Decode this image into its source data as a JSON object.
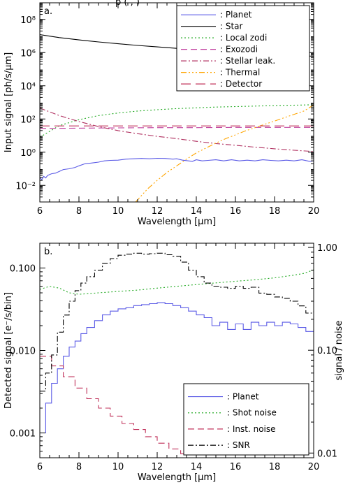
{
  "header_fragment": "p (  ,         )",
  "chart_data": [
    {
      "type": "line",
      "panel_label": "a.",
      "xlabel": "Wavelength [μm]",
      "ylabel": "Input signal [ph/s/μm]",
      "xlim": [
        6,
        20
      ],
      "ylim": [
        0.001,
        1000000000
      ],
      "yscale": "log",
      "x_ticks": [
        6,
        8,
        10,
        12,
        14,
        16,
        18,
        20
      ],
      "y_ticks": [
        {
          "value": 0.01,
          "label": "10⁻²"
        },
        {
          "value": 1,
          "label": "10⁰"
        },
        {
          "value": 100,
          "label": "10²"
        },
        {
          "value": 10000,
          "label": "10⁴"
        },
        {
          "value": 1000000,
          "label": "10⁶"
        },
        {
          "value": 100000000,
          "label": "10⁸"
        }
      ],
      "legend_position": "top-right",
      "series": [
        {
          "name": ": Planet",
          "color": "#5b5be6",
          "dash": "",
          "x": [
            6.0,
            6.1,
            6.2,
            6.3,
            6.4,
            6.6,
            6.8,
            7.0,
            7.2,
            7.5,
            7.8,
            8.0,
            8.3,
            8.6,
            9.0,
            9.3,
            9.6,
            10.0,
            10.4,
            10.8,
            11.2,
            11.6,
            12.0,
            12.4,
            12.8,
            13.0,
            13.3,
            13.6,
            13.8,
            14.0,
            14.3,
            14.6,
            15.0,
            15.4,
            15.8,
            16.2,
            16.6,
            17.0,
            17.4,
            17.8,
            18.2,
            18.6,
            19.0,
            19.4,
            19.8,
            20.0
          ],
          "y": [
            0.03,
            0.022,
            0.035,
            0.028,
            0.04,
            0.05,
            0.055,
            0.07,
            0.09,
            0.1,
            0.12,
            0.15,
            0.2,
            0.22,
            0.25,
            0.3,
            0.32,
            0.33,
            0.38,
            0.4,
            0.42,
            0.4,
            0.43,
            0.42,
            0.38,
            0.4,
            0.33,
            0.3,
            0.28,
            0.35,
            0.3,
            0.32,
            0.35,
            0.3,
            0.35,
            0.3,
            0.33,
            0.3,
            0.35,
            0.32,
            0.3,
            0.33,
            0.3,
            0.35,
            0.28,
            0.3
          ]
        },
        {
          "name": ": Star",
          "color": "#000000",
          "dash": "",
          "x": [
            6,
            7,
            8,
            9,
            10,
            11,
            12,
            13,
            14,
            15,
            16,
            17,
            18,
            19,
            20
          ],
          "y": [
            12000000,
            8000000,
            5800000,
            4400000,
            3400000,
            2700000,
            2200000,
            1800000,
            1500000,
            1250000,
            1050000,
            900000,
            780000,
            680000,
            600000
          ]
        },
        {
          "name": ": Local zodi",
          "color": "#22aa22",
          "dash": "2,3",
          "x": [
            6,
            7,
            8,
            9,
            10,
            11,
            12,
            13,
            14,
            15,
            16,
            17,
            18,
            19,
            20
          ],
          "y": [
            8,
            40,
            90,
            160,
            230,
            300,
            360,
            420,
            470,
            520,
            560,
            600,
            640,
            680,
            720
          ]
        },
        {
          "name": ": Exozodi",
          "color": "#c040a0",
          "dash": "9,5",
          "x": [
            6,
            8,
            10,
            12,
            14,
            16,
            18,
            20
          ],
          "y": [
            27,
            28,
            29,
            30,
            30,
            31,
            31,
            31
          ]
        },
        {
          "name": ": Stellar leak.",
          "color": "#b03060",
          "dash": "8,3,2,3",
          "x": [
            6,
            7,
            8,
            9,
            10,
            11,
            12,
            13,
            14,
            15,
            16,
            17,
            18,
            19,
            20
          ],
          "y": [
            450,
            160,
            70,
            35,
            20,
            13,
            9,
            6.5,
            4.5,
            3.3,
            2.6,
            2.0,
            1.6,
            1.3,
            1.1
          ]
        },
        {
          "name": ": Thermal",
          "color": "#ffa500",
          "dash": "8,3,2,3,2,3,2,3",
          "x": [
            10.9,
            11.5,
            12,
            12.5,
            13,
            13.5,
            14,
            14.5,
            15,
            15.5,
            16,
            16.5,
            17,
            17.5,
            18,
            18.5,
            19,
            19.5,
            20
          ],
          "y": [
            0.001,
            0.006,
            0.02,
            0.06,
            0.15,
            0.38,
            0.9,
            1.8,
            3.5,
            6.5,
            11,
            19,
            30,
            48,
            75,
            120,
            190,
            300,
            700
          ]
        },
        {
          "name": ": Detector",
          "color": "#c0305a",
          "dash": "14,7",
          "x": [
            6,
            20
          ],
          "y": [
            38,
            38
          ]
        }
      ]
    },
    {
      "type": "line",
      "panel_label": "b.",
      "xlabel": "Wavelength [μm]",
      "ylabel": "Detected signal [e⁻/s/bin]",
      "ylabel_right": "signal / noise",
      "xlim": [
        6,
        20
      ],
      "ylim": [
        0.0005,
        0.2
      ],
      "yscale": "log",
      "ylim_right": [
        0.009,
        1.1
      ],
      "x_ticks": [
        6,
        8,
        10,
        12,
        14,
        16,
        18,
        20
      ],
      "y_ticks": [
        {
          "value": 0.001,
          "label": "0.001"
        },
        {
          "value": 0.01,
          "label": "0.010"
        },
        {
          "value": 0.1,
          "label": "0.100"
        }
      ],
      "y_ticks_right": [
        {
          "value": 0.01,
          "label": "0.01"
        },
        {
          "value": 0.1,
          "label": "0.10"
        },
        {
          "value": 1.0,
          "label": "1.00"
        }
      ],
      "legend_position": "bottom-right",
      "series": [
        {
          "name": ": Planet",
          "color": "#5b5be6",
          "dash": "",
          "step": true,
          "x": [
            6.0,
            6.3,
            6.6,
            6.9,
            7.2,
            7.5,
            7.8,
            8.1,
            8.4,
            8.8,
            9.2,
            9.6,
            10.0,
            10.4,
            10.8,
            11.2,
            11.6,
            12.0,
            12.4,
            12.8,
            13.2,
            13.6,
            14.0,
            14.4,
            14.8,
            15.2,
            15.6,
            16.0,
            16.4,
            16.8,
            17.2,
            17.6,
            18.0,
            18.4,
            18.8,
            19.2,
            19.6,
            20.0
          ],
          "y": [
            0.001,
            0.0023,
            0.004,
            0.006,
            0.0085,
            0.011,
            0.013,
            0.016,
            0.019,
            0.023,
            0.027,
            0.03,
            0.032,
            0.033,
            0.035,
            0.036,
            0.037,
            0.038,
            0.037,
            0.035,
            0.033,
            0.03,
            0.027,
            0.025,
            0.02,
            0.022,
            0.018,
            0.021,
            0.018,
            0.022,
            0.02,
            0.022,
            0.02,
            0.022,
            0.021,
            0.019,
            0.017,
            0.018
          ]
        },
        {
          "name": ": Shot noise",
          "color": "#22aa22",
          "dash": "2,3",
          "x": [
            6.0,
            6.5,
            7.0,
            7.5,
            8.0,
            8.5,
            9.0,
            10,
            11,
            12,
            13,
            14,
            15,
            16,
            17,
            18,
            19,
            19.5,
            20
          ],
          "y": [
            0.055,
            0.06,
            0.057,
            0.05,
            0.048,
            0.049,
            0.05,
            0.052,
            0.054,
            0.057,
            0.06,
            0.063,
            0.066,
            0.069,
            0.072,
            0.076,
            0.082,
            0.086,
            0.095
          ]
        },
        {
          "name": ": Inst. noise",
          "color": "#c0305a",
          "dash": "9,5",
          "step": true,
          "x": [
            6.0,
            6.6,
            7.2,
            7.8,
            8.4,
            9.0,
            9.6,
            10.2,
            10.8,
            11.4,
            12.0,
            12.6,
            13.2,
            13.8,
            14.0
          ],
          "y": [
            0.0085,
            0.0065,
            0.0048,
            0.0035,
            0.0026,
            0.002,
            0.0016,
            0.0013,
            0.0011,
            0.0009,
            0.00075,
            0.00064,
            0.00056,
            0.0005,
            0.0005
          ]
        },
        {
          "name": ": SNR",
          "color": "#000000",
          "dash": "8,3,2,3",
          "axis": "right",
          "step": true,
          "x": [
            6.0,
            6.3,
            6.6,
            6.9,
            7.2,
            7.5,
            7.8,
            8.1,
            8.4,
            8.8,
            9.2,
            9.6,
            10.0,
            10.4,
            10.8,
            11.2,
            11.6,
            12.0,
            12.4,
            12.8,
            13.2,
            13.6,
            14.0,
            14.4,
            14.8,
            15.2,
            15.6,
            16.0,
            16.4,
            16.8,
            17.2,
            17.6,
            18.0,
            18.4,
            18.8,
            19.2,
            19.6,
            20.0
          ],
          "y": [
            0.04,
            0.06,
            0.09,
            0.15,
            0.22,
            0.3,
            0.38,
            0.45,
            0.52,
            0.6,
            0.7,
            0.78,
            0.84,
            0.86,
            0.88,
            0.86,
            0.87,
            0.88,
            0.85,
            0.82,
            0.72,
            0.6,
            0.52,
            0.45,
            0.42,
            0.41,
            0.4,
            0.42,
            0.4,
            0.41,
            0.36,
            0.35,
            0.33,
            0.32,
            0.3,
            0.27,
            0.23,
            0.24
          ]
        }
      ]
    }
  ]
}
